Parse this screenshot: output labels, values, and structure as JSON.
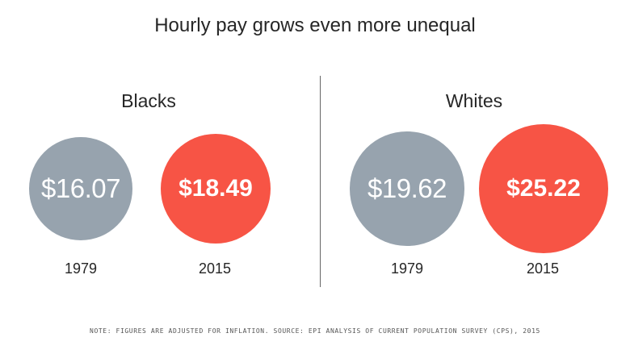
{
  "title": "Hourly pay grows even more unequal",
  "groups": [
    {
      "label": "Blacks",
      "items": [
        {
          "year": "1979",
          "value_label": "$16.07"
        },
        {
          "year": "2015",
          "value_label": "$18.49"
        }
      ]
    },
    {
      "label": "Whites",
      "items": [
        {
          "year": "1979",
          "value_label": "$19.62"
        },
        {
          "year": "2015",
          "value_label": "$25.22"
        }
      ]
    }
  ],
  "note": "Note: Figures are adjusted for inflation. Source: EPI analysis of Current Population Survey (CPS), 2015",
  "colors": {
    "1979": "#97a3ae",
    "2015": "#f75445"
  },
  "chart_data": {
    "type": "bubble",
    "title": "Hourly pay grows even more unequal",
    "categories": [
      "Blacks",
      "Whites"
    ],
    "series": [
      {
        "name": "1979",
        "values": [
          16.07,
          19.62
        ]
      },
      {
        "name": "2015",
        "values": [
          18.49,
          25.22
        ]
      }
    ],
    "units": "USD per hour",
    "legend": "none"
  }
}
